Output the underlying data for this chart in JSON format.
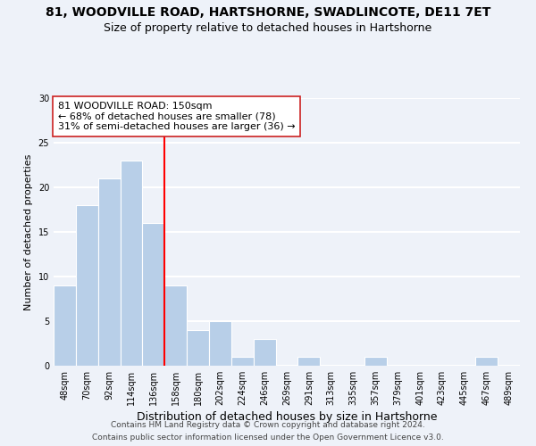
{
  "title": "81, WOODVILLE ROAD, HARTSHORNE, SWADLINCOTE, DE11 7ET",
  "subtitle": "Size of property relative to detached houses in Hartshorne",
  "xlabel": "Distribution of detached houses by size in Hartshorne",
  "ylabel": "Number of detached properties",
  "bar_color": "#b8cfe8",
  "bar_edge_color": "#ffffff",
  "bin_labels": [
    "48sqm",
    "70sqm",
    "92sqm",
    "114sqm",
    "136sqm",
    "158sqm",
    "180sqm",
    "202sqm",
    "224sqm",
    "246sqm",
    "269sqm",
    "291sqm",
    "313sqm",
    "335sqm",
    "357sqm",
    "379sqm",
    "401sqm",
    "423sqm",
    "445sqm",
    "467sqm",
    "489sqm"
  ],
  "bar_heights": [
    9,
    18,
    21,
    23,
    16,
    9,
    4,
    5,
    1,
    3,
    0,
    1,
    0,
    0,
    1,
    0,
    0,
    0,
    0,
    1,
    0
  ],
  "red_line_x": 5,
  "annotation_text": "81 WOODVILLE ROAD: 150sqm\n← 68% of detached houses are smaller (78)\n31% of semi-detached houses are larger (36) →",
  "ylim": [
    0,
    30
  ],
  "yticks": [
    0,
    5,
    10,
    15,
    20,
    25,
    30
  ],
  "footer_line1": "Contains HM Land Registry data © Crown copyright and database right 2024.",
  "footer_line2": "Contains public sector information licensed under the Open Government Licence v3.0.",
  "background_color": "#eef2f9",
  "grid_color": "#ffffff",
  "title_fontsize": 10,
  "subtitle_fontsize": 9,
  "xlabel_fontsize": 9,
  "ylabel_fontsize": 8,
  "tick_fontsize": 7,
  "annotation_fontsize": 8,
  "footer_fontsize": 6.5
}
